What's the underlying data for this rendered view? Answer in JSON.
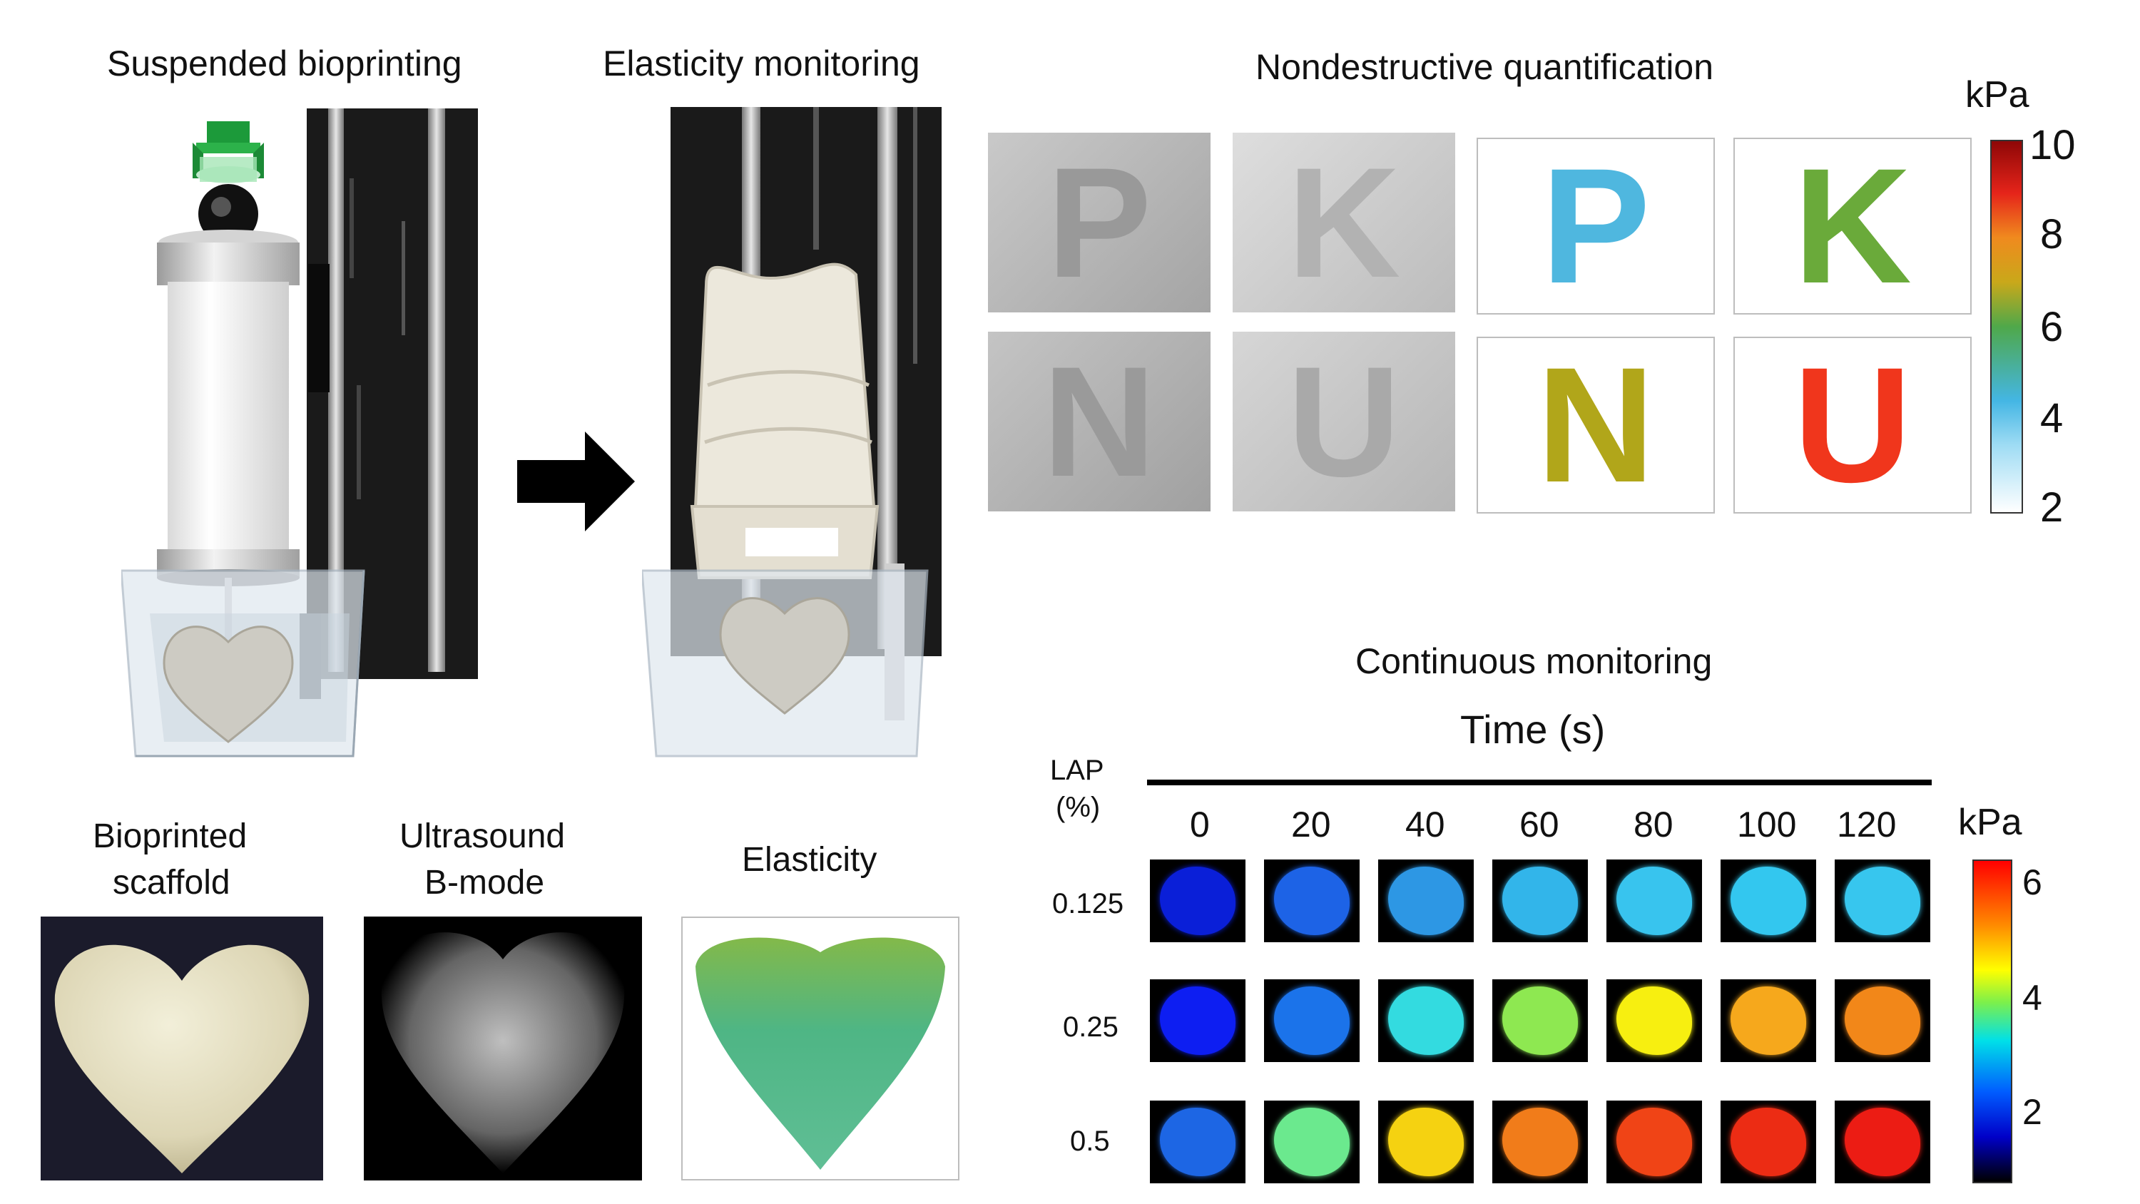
{
  "top_left": {
    "title_suspended": "Suspended bioprinting",
    "title_elasticity_monitoring": "Elasticity monitoring"
  },
  "nondestructive": {
    "title": "Nondestructive quantification",
    "letters": [
      "P",
      "K",
      "N",
      "U"
    ],
    "colorbar": {
      "unit": "kPa",
      "ticks": [
        "10",
        "8",
        "6",
        "4",
        "2"
      ],
      "min": 2,
      "max": 10
    },
    "letter_colors": {
      "P": "#4fb7df",
      "K": "#6aaa3a",
      "N": "#b1a61a",
      "U": "#f0361c"
    }
  },
  "bottom_left": {
    "scaffold_line1": "Bioprinted",
    "scaffold_line2": "scaffold",
    "bmode_line1": "Ultrasound",
    "bmode_line2": "B-mode",
    "elasticity": "Elasticity"
  },
  "continuous": {
    "title": "Continuous monitoring",
    "time_label": "Time (s)",
    "lap_line1": "LAP",
    "lap_line2": "(%)",
    "times": [
      "0",
      "20",
      "40",
      "60",
      "80",
      "100",
      "120"
    ],
    "lap_values": [
      "0.125",
      "0.25",
      "0.5"
    ],
    "colorbar": {
      "unit": "kPa",
      "ticks": [
        "6",
        "4",
        "2"
      ],
      "min": 1,
      "max": 6.5
    },
    "tile_colors": [
      [
        "#0a1fd8",
        "#1d63e6",
        "#2d97e4",
        "#32b5ea",
        "#38c4ee",
        "#33c7ef",
        "#37c6ee"
      ],
      [
        "#0d1ef2",
        "#1b73ea",
        "#33dbe0",
        "#8ee851",
        "#f7ef10",
        "#f6a81c",
        "#f28719"
      ],
      [
        "#1d66e4",
        "#6be98e",
        "#f5d211",
        "#f17c1a",
        "#f04416",
        "#ec2c14",
        "#ec1c14"
      ]
    ]
  }
}
